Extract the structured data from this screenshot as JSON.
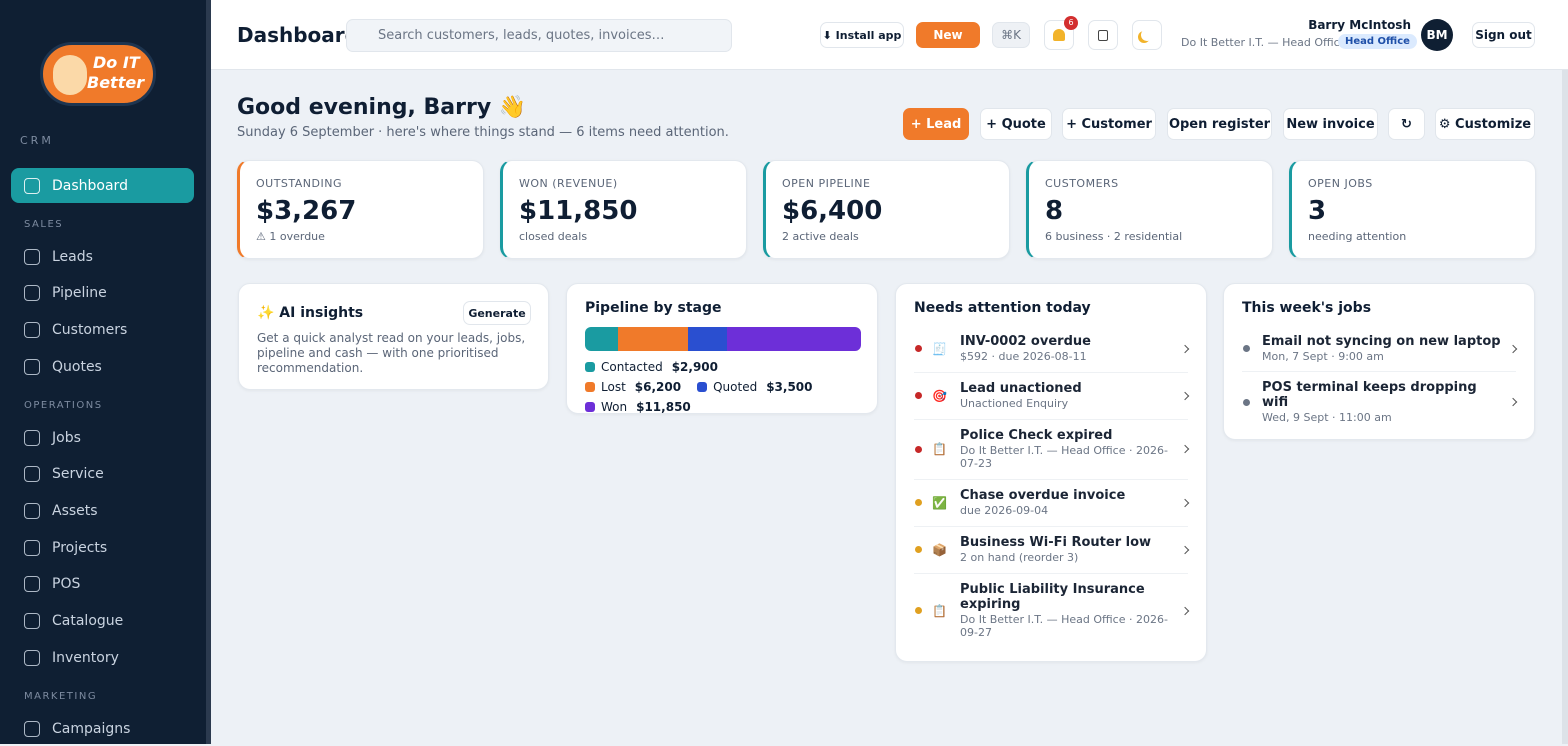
{
  "sidebar": {
    "brand_top": "Do IT",
    "brand_bottom": "Better",
    "sections": [
      {
        "title": "CRM",
        "items": [
          "Dashboard"
        ]
      },
      {
        "title": "SALES",
        "items": [
          "Leads",
          "Pipeline",
          "Customers",
          "Quotes"
        ]
      },
      {
        "title": "OPERATIONS",
        "items": [
          "Jobs",
          "Service",
          "Assets",
          "Projects",
          "POS",
          "Catalogue",
          "Inventory"
        ]
      },
      {
        "title": "MARKETING",
        "items": [
          "Campaigns"
        ]
      }
    ]
  },
  "header": {
    "title": "Dashboard",
    "search_placeholder": "Search customers, leads, quotes, invoices…",
    "install": "⬇ Install app",
    "new": "New",
    "shortcut": "⌘K",
    "notifications": "6",
    "user_name": "Barry McIntosh",
    "user_org": "Do It Better I.T. — Head Office",
    "user_badge": "Head Office",
    "avatar": "BM",
    "sign_out": "Sign out"
  },
  "greeting": {
    "title": "Good evening, Barry 👋",
    "subtitle": "Sunday 6 September · here's where things stand — 6 items need attention."
  },
  "actions": [
    "+ Lead",
    "+ Quote",
    "+ Customer",
    "Open register",
    "New invoice",
    "↻",
    "⚙ Customize"
  ],
  "kpis": [
    {
      "label": "OUTSTANDING",
      "value": "$3,267",
      "note": "⚠ 1 overdue",
      "color": "#f07a2a"
    },
    {
      "label": "WON (REVENUE)",
      "value": "$11,850",
      "note": "closed deals",
      "color": "#1a9ba1"
    },
    {
      "label": "OPEN PIPELINE",
      "value": "$6,400",
      "note": "2 active deals",
      "color": "#1a9ba1"
    },
    {
      "label": "CUSTOMERS",
      "value": "8",
      "note": "6 business · 2 residential",
      "color": "#1a9ba1"
    },
    {
      "label": "OPEN JOBS",
      "value": "3",
      "note": "needing attention",
      "color": "#1a9ba1"
    }
  ],
  "ai": {
    "title": "✨ AI insights",
    "button": "Generate",
    "text": "Get a quick analyst read on your leads, jobs, pipeline and cash — with one prioritised recommendation."
  },
  "pipeline": {
    "title": "Pipeline by stage",
    "categories": [
      "Contacted",
      "Lost",
      "Quoted",
      "Won"
    ],
    "values": [
      2900,
      6200,
      3500,
      11850
    ],
    "value_labels": [
      "$2,900",
      "$6,200",
      "$3,500",
      "$11,850"
    ],
    "colors": [
      "#1a9ba1",
      "#f07a2a",
      "#2a4fd0",
      "#6d2fd8"
    ]
  },
  "attention": {
    "title": "Needs attention today",
    "items": [
      {
        "icon": "🧾",
        "title": "INV-0002 overdue",
        "detail": "$592 · due 2026-08-11",
        "color": "#c62828"
      },
      {
        "icon": "🎯",
        "title": "Lead unactioned",
        "detail": "Unactioned Enquiry",
        "color": "#c62828"
      },
      {
        "icon": "📋",
        "title": "Police Check expired",
        "detail": "Do It Better I.T. — Head Office · 2026-07-23",
        "color": "#c62828"
      },
      {
        "icon": "✅",
        "title": "Chase overdue invoice",
        "detail": "due 2026-09-04",
        "color": "#e0a020"
      },
      {
        "icon": "📦",
        "title": "Business Wi-Fi Router low",
        "detail": "2 on hand (reorder 3)",
        "color": "#e0a020"
      },
      {
        "icon": "📋",
        "title": "Public Liability Insurance expiring",
        "detail": "Do It Better I.T. — Head Office · 2026-09-27",
        "color": "#e0a020"
      }
    ]
  },
  "jobs": {
    "title": "This week's jobs",
    "items": [
      {
        "title": "Email not syncing on new laptop",
        "detail": "Mon, 7 Sept · 9:00 am"
      },
      {
        "title": "POS terminal keeps dropping wifi",
        "detail": "Wed, 9 Sept · 11:00 am"
      }
    ]
  }
}
